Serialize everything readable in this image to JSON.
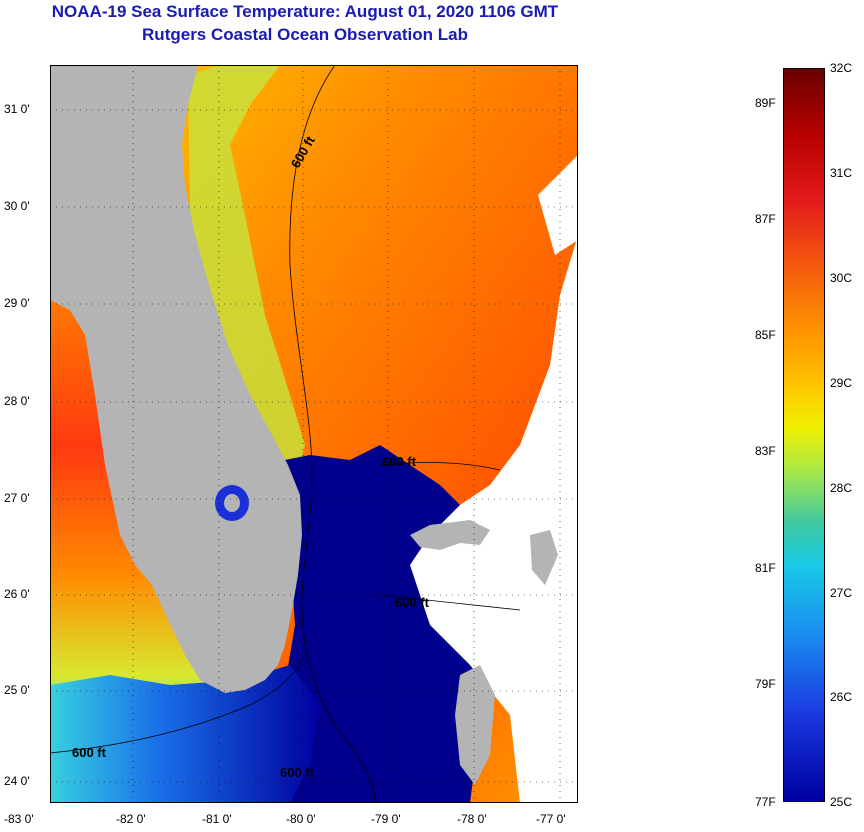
{
  "title": {
    "line1": "NOAA-19 Sea Surface Temperature:  August 01, 2020 1106 GMT",
    "line2": "Rutgers Coastal Ocean Observation Lab"
  },
  "map": {
    "lat_labels": [
      "31 0'",
      "30 0'",
      "29 0'",
      "28 0'",
      "27 0'",
      "26 0'",
      "25 0'",
      "24 0'"
    ],
    "lon_labels": [
      "-83 0'",
      "-82 0'",
      "-81 0'",
      "-80 0'",
      "-79 0'",
      "-78 0'",
      "-77 0'"
    ],
    "contour_labels": [
      "600 ft",
      "600 ft",
      "600 ft",
      "600 ft",
      "600 ft"
    ],
    "colors": {
      "land": "#b4b4b4",
      "cloud": "#ffffff",
      "cold": "#00008c",
      "warm": "#ff6a00"
    }
  },
  "colorbar": {
    "celsius": [
      "32C",
      "31C",
      "30C",
      "29C",
      "28C",
      "27C",
      "26C",
      "25C"
    ],
    "fahrenheit": [
      "89F",
      "87F",
      "85F",
      "83F",
      "81F",
      "79F",
      "77F"
    ]
  }
}
